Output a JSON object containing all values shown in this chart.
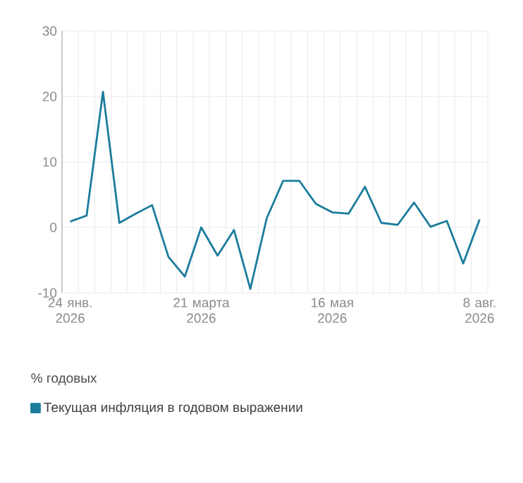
{
  "chart_data": {
    "type": "line",
    "ylabel": "% годовых",
    "categories": [
      "24 янв. 2026",
      null,
      null,
      null,
      null,
      null,
      null,
      null,
      "21 марта 2026",
      null,
      null,
      null,
      null,
      null,
      null,
      null,
      "16 мая 2026",
      null,
      null,
      null,
      null,
      null,
      null,
      null,
      null,
      "8 авг. 2026"
    ],
    "series": [
      {
        "name": "Текущая инфляция в годовом выражении",
        "color": "#1b7c9c",
        "values": [
          0.9,
          1.8,
          20.7,
          0.7,
          2.1,
          3.4,
          -4.5,
          -7.5,
          0.0,
          -4.3,
          -0.4,
          -9.4,
          1.4,
          7.1,
          7.1,
          3.6,
          2.3,
          2.1,
          6.2,
          0.7,
          0.4,
          3.8,
          0.1,
          1.0,
          -5.5,
          1.2
        ]
      }
    ],
    "ylim": [
      -10,
      30
    ],
    "yticks": [
      -10,
      0,
      10,
      20,
      30
    ],
    "grid": true,
    "legend": "bottom left",
    "marker": "none",
    "line_style": "solid"
  }
}
